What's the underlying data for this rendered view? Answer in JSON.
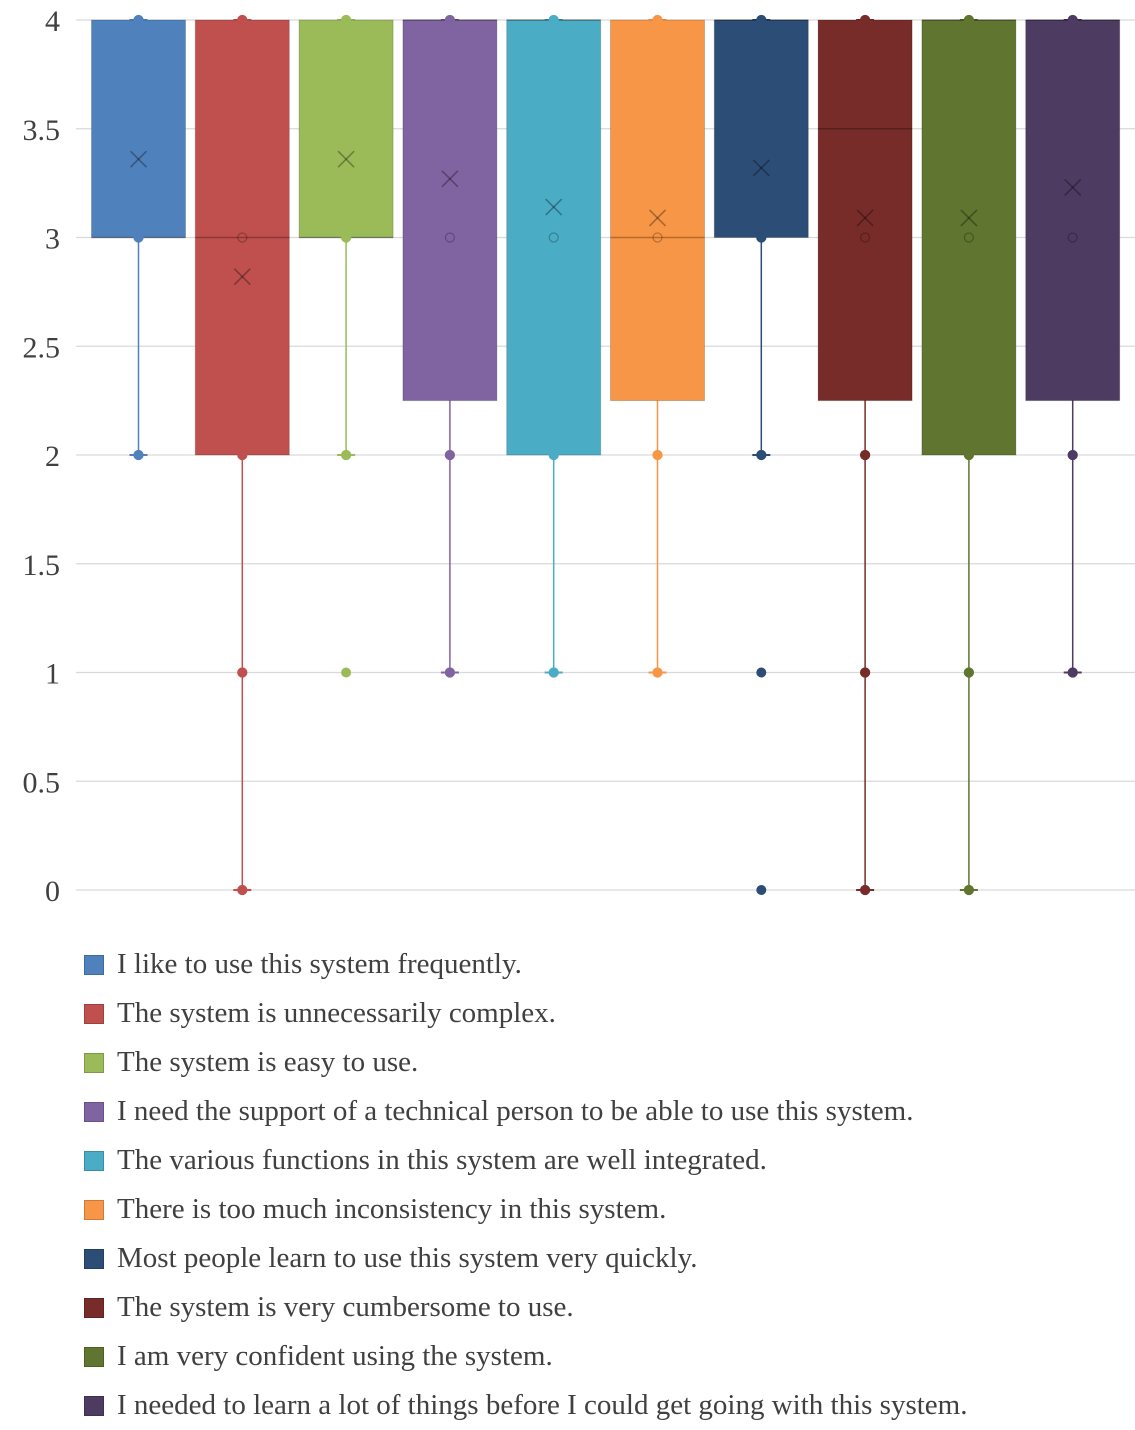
{
  "chart_data": {
    "type": "box",
    "title": "",
    "xlabel": "",
    "ylabel": "",
    "ylim": [
      0,
      4
    ],
    "y_ticks": [
      "0",
      "0.5",
      "1",
      "1.5",
      "2",
      "2.5",
      "3",
      "3.5",
      "4"
    ],
    "grid": true,
    "legend_position": "bottom",
    "series": [
      {
        "name": "I like to use this system frequently.",
        "color": "#4f81bd",
        "q1": 3,
        "median": 3,
        "q3": 4,
        "whisker_low": 2,
        "whisker_high": 4,
        "mean": 3.36,
        "points": [
          4,
          3,
          2
        ],
        "outliers": []
      },
      {
        "name": "The system is unnecessarily complex.",
        "color": "#c0504d",
        "q1": 2,
        "median": 3,
        "q3": 4,
        "whisker_low": 0,
        "whisker_high": 4,
        "mean": 2.82,
        "points": [
          4,
          3,
          2,
          1,
          0
        ],
        "outliers": []
      },
      {
        "name": "The system is easy to use.",
        "color": "#9bbb59",
        "q1": 3,
        "median": 3,
        "q3": 4,
        "whisker_low": 2,
        "whisker_high": 4,
        "mean": 3.36,
        "points": [
          4,
          3,
          2
        ],
        "outliers": [
          1
        ]
      },
      {
        "name": "I need the support of a technical person to be able to use this system.",
        "color": "#8064a2",
        "q1": 2.25,
        "median": 4,
        "q3": 4,
        "whisker_low": 1,
        "whisker_high": 4,
        "mean": 3.27,
        "points": [
          4,
          3,
          2,
          1
        ],
        "outliers": []
      },
      {
        "name": "The various functions in this system are well integrated.",
        "color": "#4bacc6",
        "q1": 2,
        "median": 4,
        "q3": 4,
        "whisker_low": 1,
        "whisker_high": 4,
        "mean": 3.14,
        "points": [
          4,
          3,
          2,
          1
        ],
        "outliers": []
      },
      {
        "name": "There is too much inconsistency in this system.",
        "color": "#f79646",
        "q1": 2.25,
        "median": 3,
        "q3": 4,
        "whisker_low": 1,
        "whisker_high": 4,
        "mean": 3.09,
        "points": [
          4,
          3,
          2,
          1
        ],
        "outliers": []
      },
      {
        "name": "Most people learn to use this system very quickly.",
        "color": "#2c4d75",
        "q1": 3,
        "median": 4,
        "q3": 4,
        "whisker_low": 2,
        "whisker_high": 4,
        "mean": 3.32,
        "points": [
          4,
          3,
          2
        ],
        "outliers": [
          1,
          0
        ]
      },
      {
        "name": "The system is very cumbersome to use.",
        "color": "#772c2a",
        "q1": 2.25,
        "median": 3.5,
        "q3": 4,
        "whisker_low": 0,
        "whisker_high": 4,
        "mean": 3.09,
        "points": [
          4,
          3,
          2,
          1,
          0
        ],
        "outliers": []
      },
      {
        "name": "I am very confident using the system.",
        "color": "#5f7530",
        "q1": 2,
        "median": 4,
        "q3": 4,
        "whisker_low": 0,
        "whisker_high": 4,
        "mean": 3.09,
        "points": [
          4,
          3,
          2,
          1,
          0
        ],
        "outliers": []
      },
      {
        "name": "I needed to learn a lot of things before I could get going with this system.",
        "color": "#4d3b62",
        "q1": 2.25,
        "median": 4,
        "q3": 4,
        "whisker_low": 1,
        "whisker_high": 4,
        "mean": 3.23,
        "points": [
          4,
          3,
          2,
          1
        ],
        "outliers": []
      }
    ]
  }
}
